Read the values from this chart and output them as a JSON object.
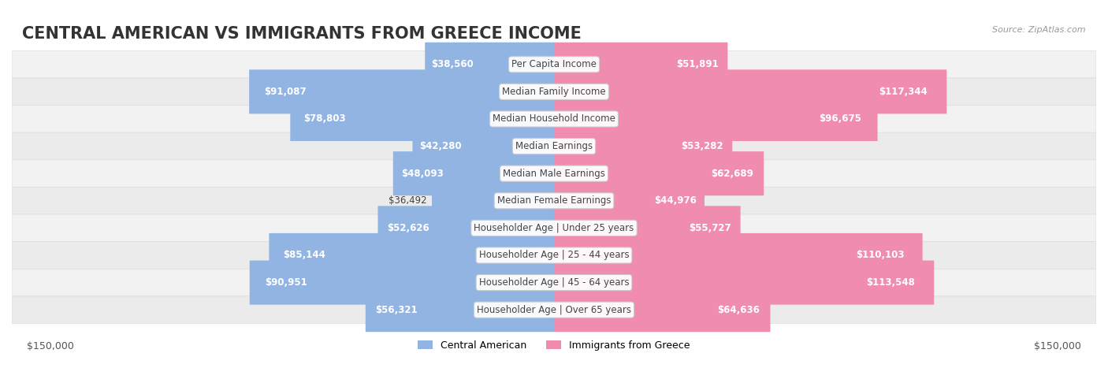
{
  "title": "CENTRAL AMERICAN VS IMMIGRANTS FROM GREECE INCOME",
  "source": "Source: ZipAtlas.com",
  "categories": [
    "Per Capita Income",
    "Median Family Income",
    "Median Household Income",
    "Median Earnings",
    "Median Male Earnings",
    "Median Female Earnings",
    "Householder Age | Under 25 years",
    "Householder Age | 25 - 44 years",
    "Householder Age | 45 - 64 years",
    "Householder Age | Over 65 years"
  ],
  "left_values": [
    38560,
    91087,
    78803,
    42280,
    48093,
    36492,
    52626,
    85144,
    90951,
    56321
  ],
  "right_values": [
    51891,
    117344,
    96675,
    53282,
    62689,
    44976,
    55727,
    110103,
    113548,
    64636
  ],
  "left_labels": [
    "$38,560",
    "$91,087",
    "$78,803",
    "$42,280",
    "$48,093",
    "$36,492",
    "$52,626",
    "$85,144",
    "$90,951",
    "$56,321"
  ],
  "right_labels": [
    "$51,891",
    "$117,344",
    "$96,675",
    "$53,282",
    "$62,689",
    "$44,976",
    "$55,727",
    "$110,103",
    "$113,548",
    "$64,636"
  ],
  "left_color": "#92b4e3",
  "right_color": "#f08cb0",
  "label_color_highlight_left": [
    "#ffffff",
    "#ffffff"
  ],
  "label_color_highlight_right": [
    "#ffffff",
    "#ffffff"
  ],
  "max_value": 150000,
  "left_legend": "Central American",
  "right_legend": "Immigrants from Greece",
  "bg_color": "#f5f5f5",
  "bar_bg_color": "#e8e8e8",
  "row_bg_color": "#f0f0f0",
  "title_fontsize": 15,
  "label_fontsize": 8.5,
  "category_fontsize": 8.5,
  "axis_label_left": "$150,000",
  "axis_label_right": "$150,000"
}
